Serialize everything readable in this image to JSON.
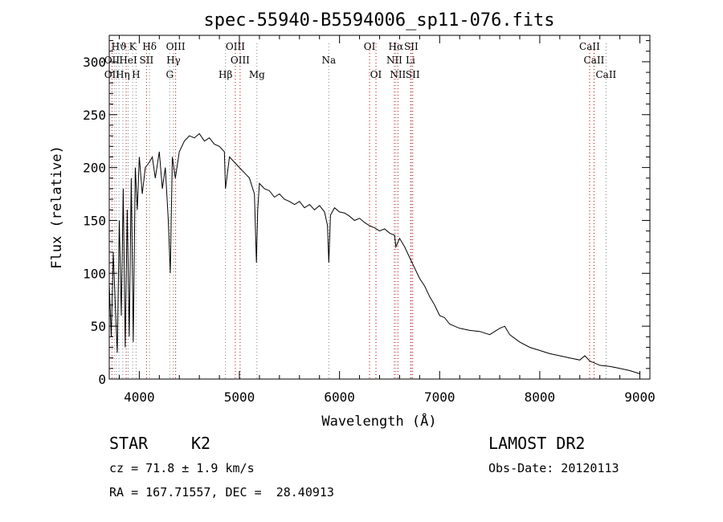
{
  "chart_data": {
    "type": "line",
    "title": "spec-55940-B5594006_sp11-076.fits",
    "xlabel": "Wavelength (Å)",
    "ylabel": "Flux (relative)",
    "xlim": [
      3700,
      9100
    ],
    "ylim": [
      0,
      325
    ],
    "x_ticks": [
      4000,
      5000,
      6000,
      7000,
      8000,
      9000
    ],
    "y_ticks": [
      0,
      50,
      100,
      150,
      200,
      250,
      300
    ],
    "grid": false,
    "series": [
      {
        "color": "#000000",
        "x": [
          3700,
          3720,
          3740,
          3760,
          3780,
          3800,
          3820,
          3840,
          3860,
          3880,
          3900,
          3920,
          3940,
          3960,
          3980,
          4000,
          4030,
          4060,
          4100,
          4130,
          4160,
          4200,
          4230,
          4260,
          4290,
          4310,
          4330,
          4360,
          4400,
          4450,
          4500,
          4550,
          4600,
          4650,
          4700,
          4750,
          4800,
          4850,
          4861,
          4900,
          4950,
          5000,
          5050,
          5100,
          5150,
          5170,
          5183,
          5200,
          5250,
          5300,
          5350,
          5400,
          5450,
          5500,
          5550,
          5600,
          5650,
          5700,
          5750,
          5800,
          5850,
          5880,
          5893,
          5910,
          5950,
          6000,
          6050,
          6100,
          6150,
          6200,
          6250,
          6300,
          6350,
          6400,
          6450,
          6500,
          6550,
          6563,
          6600,
          6650,
          6700,
          6750,
          6800,
          6850,
          6900,
          6950,
          7000,
          7050,
          7100,
          7150,
          7200,
          7300,
          7400,
          7500,
          7600,
          7650,
          7700,
          7800,
          7900,
          8000,
          8100,
          8200,
          8300,
          8400,
          8450,
          8500,
          8550,
          8600,
          8700,
          8800,
          8900,
          9000
        ],
        "y": [
          90,
          40,
          120,
          70,
          25,
          150,
          60,
          180,
          30,
          160,
          40,
          190,
          35,
          200,
          160,
          210,
          175,
          200,
          205,
          210,
          190,
          215,
          180,
          200,
          150,
          100,
          210,
          190,
          215,
          225,
          230,
          228,
          232,
          225,
          228,
          222,
          220,
          215,
          180,
          210,
          205,
          200,
          195,
          190,
          175,
          110,
          160,
          185,
          180,
          178,
          172,
          175,
          170,
          168,
          165,
          168,
          162,
          165,
          160,
          164,
          158,
          145,
          110,
          155,
          162,
          158,
          157,
          154,
          150,
          152,
          148,
          145,
          143,
          140,
          142,
          138,
          136,
          125,
          133,
          125,
          115,
          105,
          95,
          88,
          78,
          70,
          60,
          58,
          52,
          50,
          48,
          46,
          45,
          42,
          48,
          50,
          42,
          35,
          30,
          27,
          24,
          22,
          20,
          18,
          22,
          17,
          15,
          13,
          12,
          10,
          8,
          5
        ]
      }
    ],
    "annotations": [
      {
        "text": "Hϑ",
        "x": 3797,
        "row": 1
      },
      {
        "text": "K",
        "x": 3934,
        "row": 1
      },
      {
        "text": "Hδ",
        "x": 4102,
        "row": 1
      },
      {
        "text": "OIII",
        "x": 4363,
        "row": 1
      },
      {
        "text": "OIII",
        "x": 4959,
        "row": 1
      },
      {
        "text": "OI",
        "x": 6300,
        "row": 1
      },
      {
        "text": "Hα",
        "x": 6563,
        "row": 1
      },
      {
        "text": "SII",
        "x": 6716,
        "row": 1
      },
      {
        "text": "CaII",
        "x": 8498,
        "row": 1
      },
      {
        "text": "OII",
        "x": 3727,
        "row": 2
      },
      {
        "text": "HeI",
        "x": 3889,
        "row": 2
      },
      {
        "text": "SII",
        "x": 4072,
        "row": 2
      },
      {
        "text": "Hγ",
        "x": 4341,
        "row": 2
      },
      {
        "text": "OIII",
        "x": 5007,
        "row": 2
      },
      {
        "text": "Na",
        "x": 5893,
        "row": 2
      },
      {
        "text": "NII",
        "x": 6548,
        "row": 2
      },
      {
        "text": "Li",
        "x": 6708,
        "row": 2
      },
      {
        "text": "CaII",
        "x": 8542,
        "row": 2
      },
      {
        "text": "OII",
        "x": 3727,
        "row": 3
      },
      {
        "text": "Hη",
        "x": 3835,
        "row": 3
      },
      {
        "text": "H",
        "x": 3968,
        "row": 3
      },
      {
        "text": "G",
        "x": 4304,
        "row": 3
      },
      {
        "text": "Hβ",
        "x": 4861,
        "row": 3
      },
      {
        "text": "Mg",
        "x": 5175,
        "row": 3
      },
      {
        "text": "OI",
        "x": 6364,
        "row": 3
      },
      {
        "text": "NII",
        "x": 6583,
        "row": 3
      },
      {
        "text": "SII",
        "x": 6731,
        "row": 3
      },
      {
        "text": "CaII",
        "x": 8662,
        "row": 3
      }
    ],
    "line_markers": [
      {
        "x": 3727,
        "color": "#c00000"
      },
      {
        "x": 3750,
        "color": "#808080"
      },
      {
        "x": 3770,
        "color": "#808080"
      },
      {
        "x": 3797,
        "color": "#808080"
      },
      {
        "x": 3835,
        "color": "#808080"
      },
      {
        "x": 3869,
        "color": "#c00000"
      },
      {
        "x": 3889,
        "color": "#808080"
      },
      {
        "x": 3934,
        "color": "#808080"
      },
      {
        "x": 3968,
        "color": "#808080"
      },
      {
        "x": 4072,
        "color": "#c00000"
      },
      {
        "x": 4102,
        "color": "#808080"
      },
      {
        "x": 4304,
        "color": "#808080"
      },
      {
        "x": 4341,
        "color": "#808080"
      },
      {
        "x": 4363,
        "color": "#c00000"
      },
      {
        "x": 4861,
        "color": "#808080"
      },
      {
        "x": 4959,
        "color": "#c00000"
      },
      {
        "x": 5007,
        "color": "#c00000"
      },
      {
        "x": 5175,
        "color": "#808080"
      },
      {
        "x": 5893,
        "color": "#808080"
      },
      {
        "x": 6300,
        "color": "#c00000"
      },
      {
        "x": 6364,
        "color": "#c00000"
      },
      {
        "x": 6548,
        "color": "#c00000"
      },
      {
        "x": 6563,
        "color": "#808080"
      },
      {
        "x": 6583,
        "color": "#c00000"
      },
      {
        "x": 6708,
        "color": "#808080"
      },
      {
        "x": 6716,
        "color": "#c00000"
      },
      {
        "x": 6731,
        "color": "#c00000"
      },
      {
        "x": 8498,
        "color": "#c00000"
      },
      {
        "x": 8542,
        "color": "#c00000"
      },
      {
        "x": 8662,
        "color": "#808080"
      }
    ]
  },
  "footer": {
    "class_label": "STAR",
    "subclass_label": "K2",
    "survey_label": "LAMOST DR2",
    "cz_line": "cz = 71.8 ± 1.9 km/s",
    "obs_date_line": "Obs-Date: 20120113",
    "coords_line": "RA = 167.71557, DEC =  28.40913"
  }
}
